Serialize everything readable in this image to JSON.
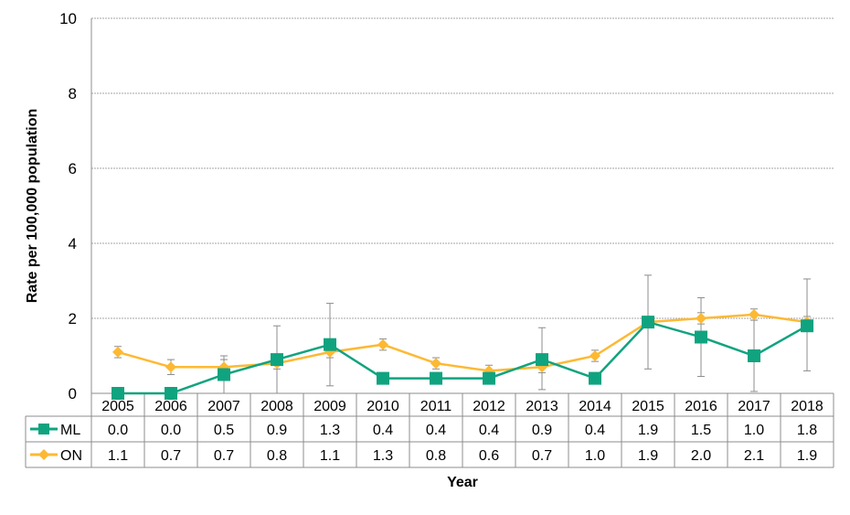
{
  "chart_data": {
    "type": "line",
    "title": "",
    "xlabel": "Year",
    "ylabel": "Rate per 100,000 population",
    "ylim": [
      0,
      10
    ],
    "yticks": [
      "0",
      "2",
      "4",
      "6",
      "8",
      "10"
    ],
    "grid": true,
    "legend": "data table (left)",
    "categories": [
      "2005",
      "2006",
      "2007",
      "2008",
      "2009",
      "2010",
      "2011",
      "2012",
      "2013",
      "2014",
      "2015",
      "2016",
      "2017",
      "2018"
    ],
    "series": [
      {
        "name": "ML",
        "color": "#10A37F",
        "marker": "square",
        "values": [
          0.0,
          0.0,
          0.5,
          0.9,
          1.3,
          0.4,
          0.4,
          0.4,
          0.9,
          0.4,
          1.9,
          1.5,
          1.0,
          1.8
        ],
        "labels": [
          "0.0",
          "0.0",
          "0.5",
          "0.9",
          "1.3",
          "0.4",
          "0.4",
          "0.4",
          "0.9",
          "0.4",
          "1.9",
          "1.5",
          "1.0",
          "1.8"
        ],
        "error_low": [
          null,
          null,
          0.0,
          0.0,
          0.2,
          null,
          null,
          null,
          0.1,
          null,
          0.65,
          0.45,
          0.05,
          0.6
        ],
        "error_high": [
          null,
          null,
          1.0,
          1.8,
          2.4,
          null,
          null,
          null,
          1.75,
          null,
          3.15,
          2.55,
          1.95,
          3.05
        ]
      },
      {
        "name": "ON",
        "color": "#FDB933",
        "marker": "diamond",
        "values": [
          1.1,
          0.7,
          0.7,
          0.8,
          1.1,
          1.3,
          0.8,
          0.6,
          0.7,
          1.0,
          1.9,
          2.0,
          2.1,
          1.9
        ],
        "labels": [
          "1.1",
          "0.7",
          "0.7",
          "0.8",
          "1.1",
          "1.3",
          "0.8",
          "0.6",
          "0.7",
          "1.0",
          "1.9",
          "2.0",
          "2.1",
          "1.9"
        ],
        "error_low": [
          0.95,
          0.5,
          0.5,
          0.65,
          0.95,
          1.15,
          0.65,
          0.45,
          0.55,
          0.85,
          1.75,
          1.85,
          1.95,
          1.75
        ],
        "error_high": [
          1.25,
          0.9,
          0.9,
          0.95,
          1.25,
          1.45,
          0.95,
          0.75,
          0.85,
          1.15,
          2.05,
          2.15,
          2.25,
          2.05
        ]
      }
    ]
  }
}
